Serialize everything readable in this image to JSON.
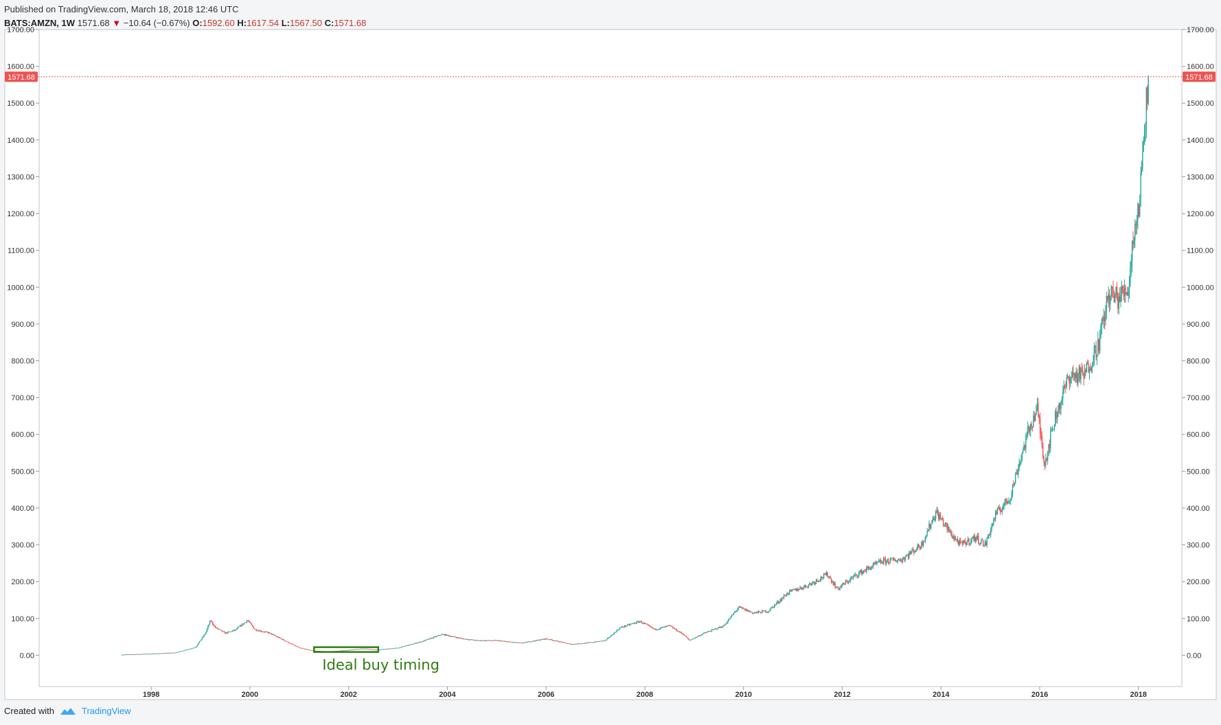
{
  "header": {
    "published": "Published on TradingView.com, March 18, 2018 12:46 UTC",
    "symbol": "BATS:AMZN, 1W",
    "last": "1571.68",
    "change_arrow": "▼",
    "change": "−10.64 (−0.67%)",
    "o_label": "O:",
    "o_value": "1592.60",
    "h_label": "H:",
    "h_value": "1617.54",
    "l_label": "L:",
    "l_value": "1567.50",
    "c_label": "C:",
    "c_value": "1571.68"
  },
  "footer": {
    "created_with": "Created with",
    "brand": "TradingView",
    "logo_icon": "tradingview-logo-icon"
  },
  "colors": {
    "up": "#26a69a",
    "down": "#ef5350",
    "price_line": "#ef5350",
    "annotation": "#2e7d12"
  },
  "chart_data": {
    "type": "candlestick",
    "title": "BATS:AMZN, 1W",
    "ylim": [
      -85,
      1700
    ],
    "y_ticks": [
      "1700.00",
      "1600.00",
      "1500.00",
      "1400.00",
      "1300.00",
      "1200.00",
      "1100.00",
      "1000.00",
      "900.00",
      "800.00",
      "700.00",
      "600.00",
      "500.00",
      "400.00",
      "300.00",
      "200.00",
      "100.00",
      "0.00"
    ],
    "x_ticks": [
      "1998",
      "2000",
      "2002",
      "2004",
      "2006",
      "2008",
      "2010",
      "2012",
      "2014",
      "2016",
      "2018"
    ],
    "xlim": [
      1995.73,
      2018.88
    ],
    "last_price": 1571.68,
    "last_price_label": "1571.68",
    "series_points": [
      [
        1997.4,
        1.5
      ],
      [
        1998.0,
        4
      ],
      [
        1998.5,
        7
      ],
      [
        1998.9,
        22
      ],
      [
        1999.1,
        60
      ],
      [
        1999.2,
        95
      ],
      [
        1999.3,
        75
      ],
      [
        1999.5,
        60
      ],
      [
        1999.7,
        68
      ],
      [
        1999.95,
        95
      ],
      [
        2000.1,
        70
      ],
      [
        2000.4,
        60
      ],
      [
        2000.7,
        40
      ],
      [
        2001.0,
        20
      ],
      [
        2001.3,
        12
      ],
      [
        2001.6,
        10
      ],
      [
        2001.9,
        13
      ],
      [
        2002.3,
        18
      ],
      [
        2002.6,
        15
      ],
      [
        2003.0,
        20
      ],
      [
        2003.5,
        38
      ],
      [
        2003.9,
        57
      ],
      [
        2004.3,
        45
      ],
      [
        2004.6,
        40
      ],
      [
        2005.0,
        40
      ],
      [
        2005.5,
        33
      ],
      [
        2006.0,
        45
      ],
      [
        2006.5,
        30
      ],
      [
        2006.8,
        33
      ],
      [
        2007.2,
        40
      ],
      [
        2007.5,
        75
      ],
      [
        2007.9,
        92
      ],
      [
        2008.2,
        70
      ],
      [
        2008.5,
        80
      ],
      [
        2008.8,
        55
      ],
      [
        2008.9,
        40
      ],
      [
        2009.2,
        60
      ],
      [
        2009.6,
        80
      ],
      [
        2009.9,
        130
      ],
      [
        2010.2,
        115
      ],
      [
        2010.5,
        120
      ],
      [
        2010.9,
        170
      ],
      [
        2011.3,
        190
      ],
      [
        2011.7,
        220
      ],
      [
        2011.9,
        180
      ],
      [
        2012.3,
        220
      ],
      [
        2012.8,
        255
      ],
      [
        2013.2,
        260
      ],
      [
        2013.6,
        300
      ],
      [
        2013.9,
        390
      ],
      [
        2014.2,
        330
      ],
      [
        2014.4,
        300
      ],
      [
        2014.7,
        320
      ],
      [
        2014.9,
        300
      ],
      [
        2015.1,
        380
      ],
      [
        2015.4,
        430
      ],
      [
        2015.6,
        530
      ],
      [
        2015.8,
        620
      ],
      [
        2015.95,
        670
      ],
      [
        2016.1,
        520
      ],
      [
        2016.3,
        640
      ],
      [
        2016.6,
        760
      ],
      [
        2016.9,
        760
      ],
      [
        2017.2,
        850
      ],
      [
        2017.4,
        980
      ],
      [
        2017.6,
        970
      ],
      [
        2017.8,
        1000
      ],
      [
        2017.9,
        1150
      ],
      [
        2018.0,
        1200
      ],
      [
        2018.1,
        1400
      ],
      [
        2018.15,
        1500
      ],
      [
        2018.2,
        1571.68
      ]
    ],
    "annotations": [
      {
        "type": "rectangle",
        "x": [
          2001.3,
          2002.6
        ],
        "y": [
          9,
          22
        ]
      },
      {
        "type": "text",
        "text": "Ideal buy timing"
      }
    ]
  }
}
